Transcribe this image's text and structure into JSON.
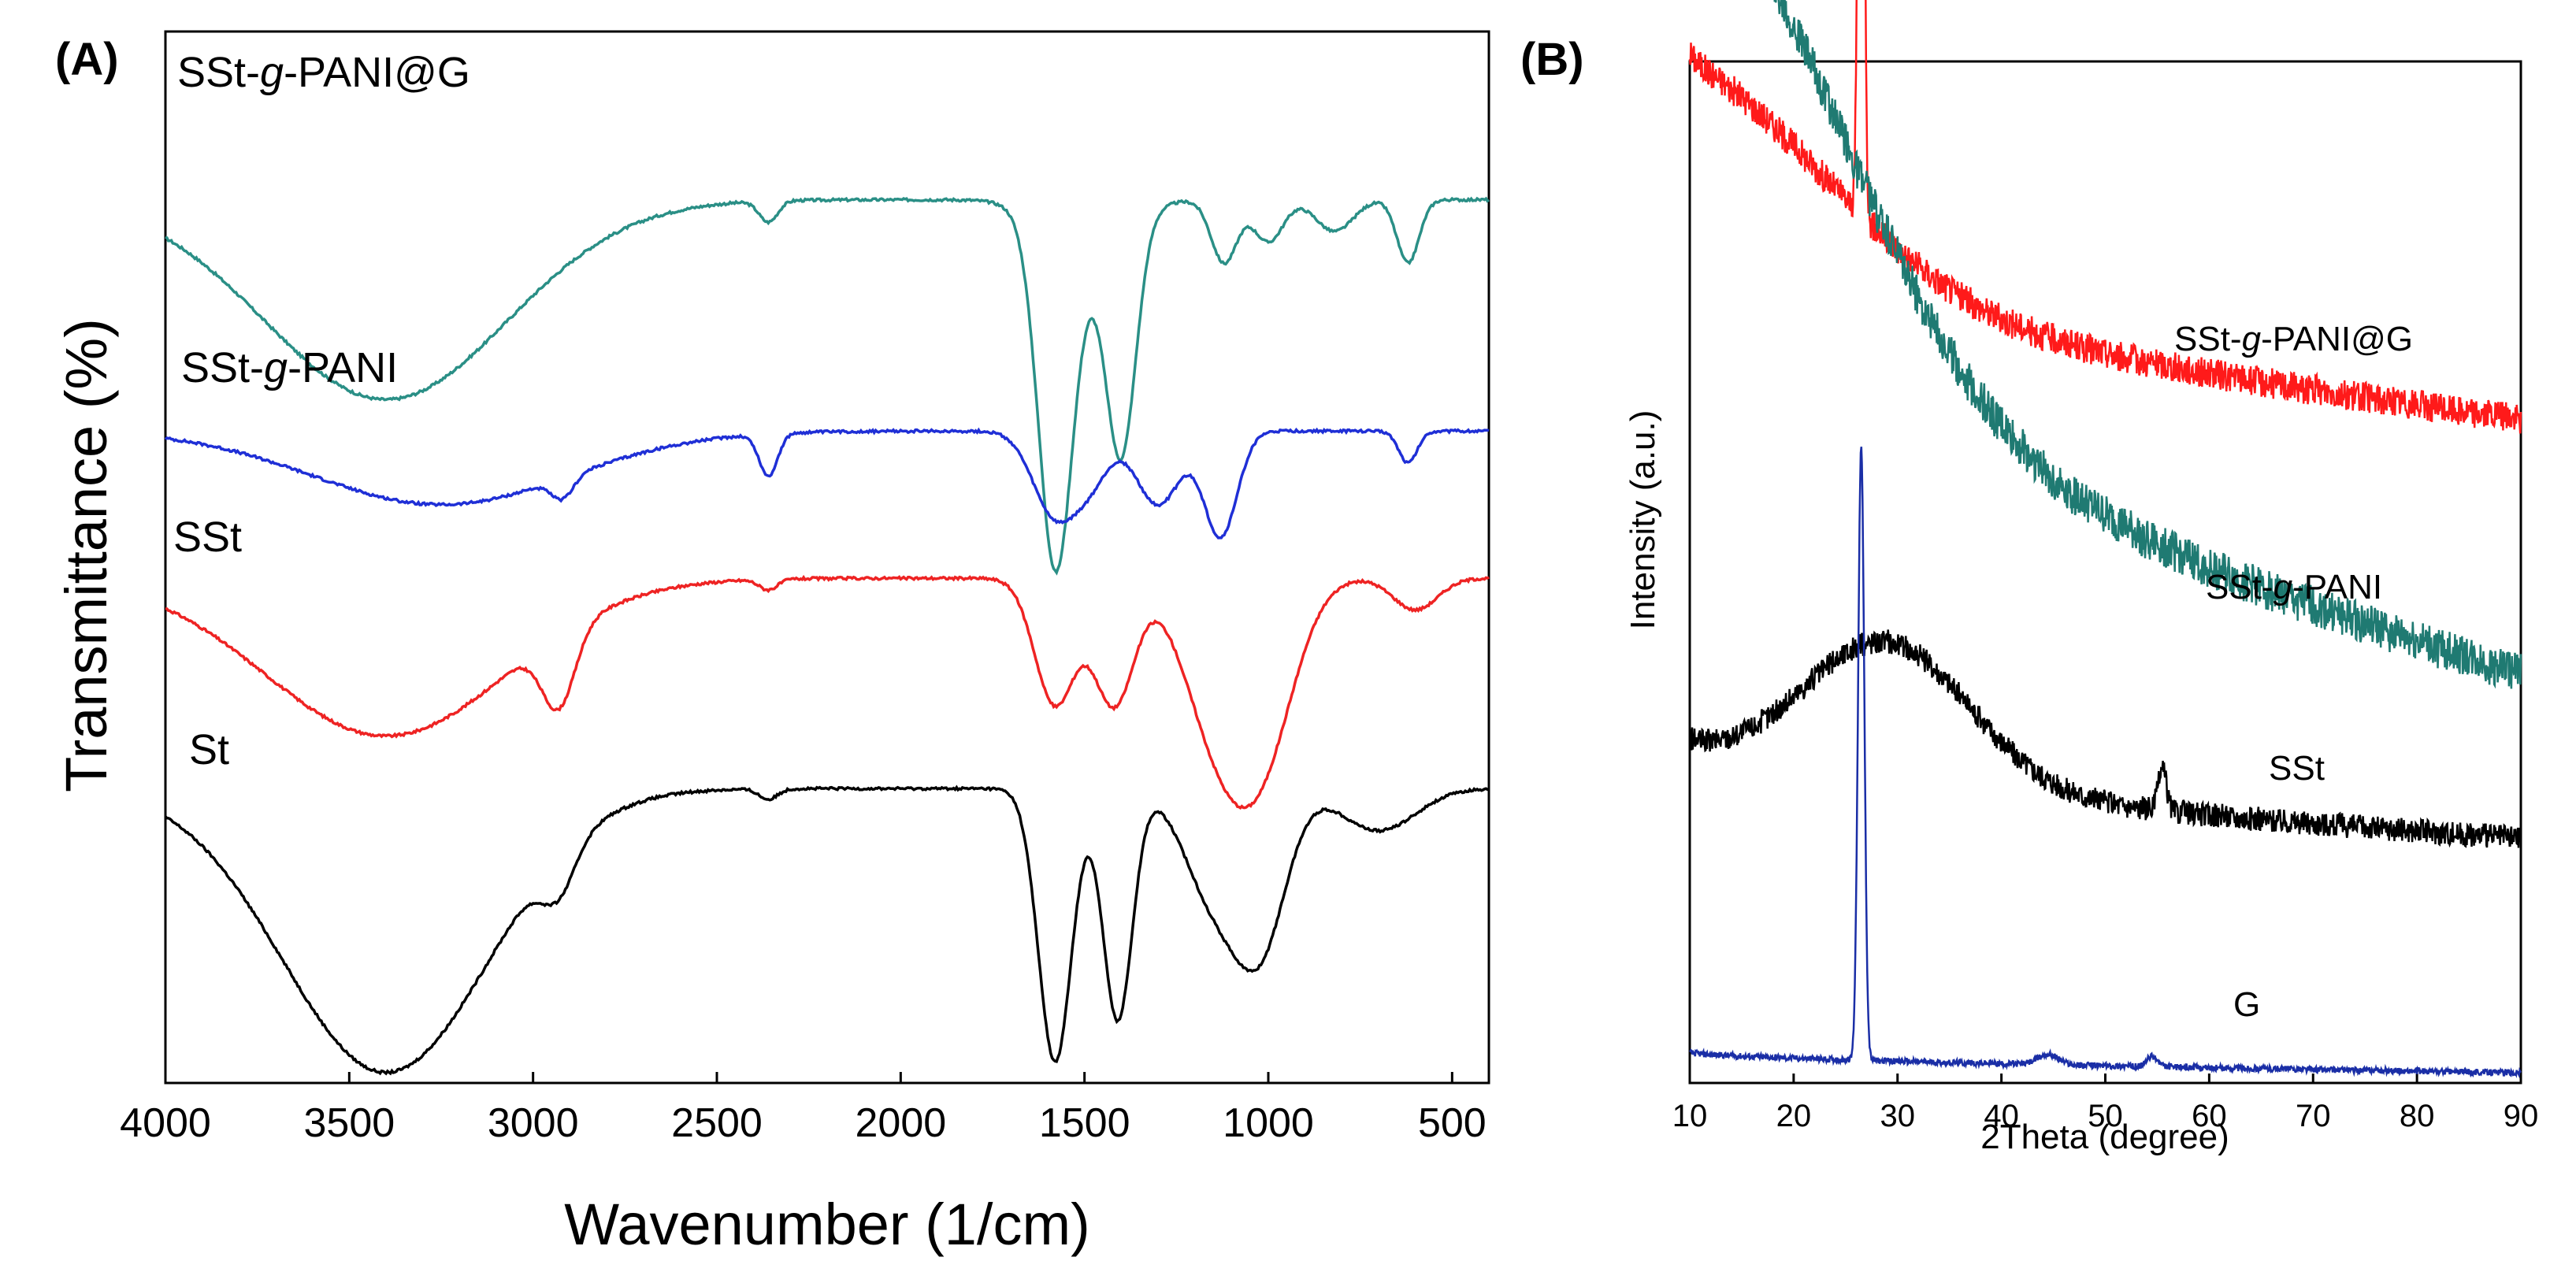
{
  "chart_data": [
    {
      "panel": "(A)",
      "type": "line",
      "xlabel": "Wavenumber (1/cm)",
      "ylabel": "Transmittance (%)",
      "xlim": [
        4000,
        400
      ],
      "x_reversed": true,
      "xticks": [
        4000,
        3500,
        3000,
        2500,
        2000,
        1500,
        1000,
        500
      ],
      "yticks": [],
      "series": [
        {
          "name": "SSt-g-PANI@G",
          "label_pre": "SSt-",
          "label_ital": "g",
          "label_post": "-PANI@G",
          "color": "#2a8f86",
          "baseline": 84,
          "features": [
            [
              3400,
              19,
              330
            ],
            [
              2360,
              2,
              25
            ],
            [
              1580,
              31,
              45
            ],
            [
              1400,
              21,
              40
            ],
            [
              1500,
              6,
              100
            ],
            [
              1120,
              6,
              35
            ],
            [
              1000,
              4,
              40
            ],
            [
              820,
              3,
              50
            ],
            [
              620,
              6,
              30
            ]
          ]
        },
        {
          "name": "SSt-g-PANI",
          "label_pre": "SSt-",
          "label_ital": "g",
          "label_post": "-PANI",
          "color": "#1f2fd6",
          "baseline": 62,
          "features": [
            [
              3250,
              7,
              350
            ],
            [
              2920,
              2,
              30
            ],
            [
              2360,
              4,
              25
            ],
            [
              1580,
              8,
              60
            ],
            [
              1480,
              4,
              50
            ],
            [
              1300,
              7,
              60
            ],
            [
              1130,
              10,
              45
            ],
            [
              620,
              3,
              25
            ]
          ]
        },
        {
          "name": "SSt",
          "label_pre": "SSt",
          "label_ital": "",
          "label_post": "",
          "color": "#ee2323",
          "baseline": 48,
          "features": [
            [
              3400,
              15,
              330
            ],
            [
              2930,
              7,
              45
            ],
            [
              2360,
              1,
              25
            ],
            [
              1580,
              12,
              55
            ],
            [
              1420,
              12,
              55
            ],
            [
              1150,
              12,
              90
            ],
            [
              1020,
              16,
              90
            ],
            [
              600,
              3,
              60
            ]
          ]
        },
        {
          "name": "St",
          "label_pre": "St",
          "label_ital": "",
          "label_post": "",
          "color": "#000000",
          "baseline": 28,
          "features": [
            [
              3400,
              27,
              280
            ],
            [
              2930,
              4,
              45
            ],
            [
              2360,
              1,
              25
            ],
            [
              1580,
              26,
              45
            ],
            [
              1410,
              22,
              40
            ],
            [
              1150,
              10,
              80
            ],
            [
              1020,
              14,
              70
            ],
            [
              700,
              4,
              100
            ]
          ]
        }
      ]
    },
    {
      "panel": "(B)",
      "type": "line",
      "xlabel": "2Theta (degree)",
      "ylabel": "Intensity (a.u.)",
      "xlim": [
        10,
        90
      ],
      "xticks": [
        10,
        20,
        30,
        40,
        50,
        60,
        70,
        80,
        90
      ],
      "yticks": [],
      "series": [
        {
          "name": "SSt-g-PANI@G",
          "label_pre": "SSt-",
          "label_ital": "g",
          "label_post": "-PANI@G",
          "color": "#ff1a1a",
          "baseline": 65,
          "noise": 1.5,
          "features": [
            [
              10,
              18,
              14
            ],
            [
              26.5,
              100,
              0.25
            ]
          ],
          "start": 83,
          "end": 65
        },
        {
          "name": "SSt-g-PANI",
          "label_pre": "SSt-",
          "label_ital": "g",
          "label_post": "-PANI",
          "color": "#1f7a72",
          "baseline": 40,
          "noise": 2.0,
          "features": [
            [
              10,
              42,
              15
            ]
          ],
          "start": 82,
          "end": 40
        },
        {
          "name": "SSt",
          "label_pre": "SSt",
          "label_ital": "",
          "label_post": "",
          "color": "#000000",
          "baseline": 24,
          "noise": 1.2,
          "features": [
            [
              29,
              14,
              8
            ],
            [
              55.5,
              4,
              0.4
            ]
          ],
          "start": 33,
          "end": 24
        },
        {
          "name": "G",
          "label_pre": "G",
          "label_ital": "",
          "label_post": "",
          "color": "#1a2ea6",
          "baseline": 1,
          "noise": 0.3,
          "features": [
            [
              26.5,
              60,
              0.3
            ],
            [
              44.5,
              1,
              1
            ],
            [
              54.5,
              1,
              0.5
            ]
          ],
          "start": 3,
          "end": 1
        }
      ]
    }
  ]
}
